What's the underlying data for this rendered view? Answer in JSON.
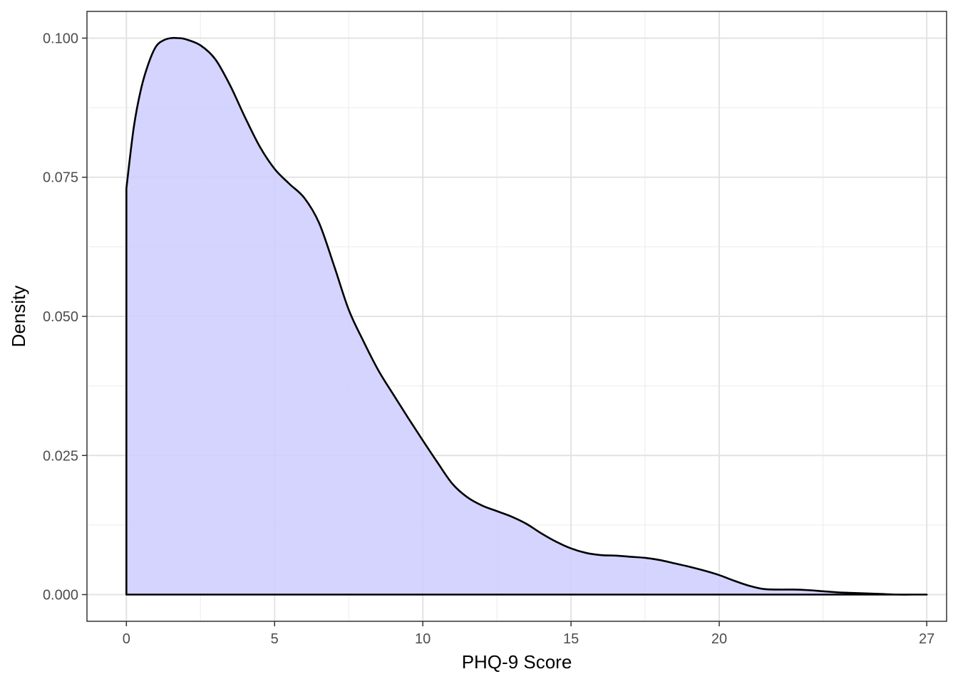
{
  "chart_data": {
    "type": "area",
    "title": "",
    "xlabel": "PHQ-9 Score",
    "ylabel": "Density",
    "xlim": [
      -1.33,
      27.67
    ],
    "ylim": [
      -0.0048,
      0.1048
    ],
    "x_ticks": [
      0,
      5,
      10,
      15,
      20,
      27
    ],
    "x_tick_labels": [
      "0",
      "5",
      "10",
      "15",
      "20",
      "27"
    ],
    "x_minor_ticks": [
      2.5,
      7.5,
      12.5,
      17.5,
      23.5
    ],
    "y_ticks": [
      0,
      0.025,
      0.05,
      0.075,
      0.1
    ],
    "y_tick_labels": [
      "0.000",
      "0.025",
      "0.050",
      "0.075",
      "0.100"
    ],
    "y_minor_ticks": [
      0.0125,
      0.0375,
      0.0625,
      0.0875
    ],
    "grid": true,
    "legend": "none",
    "fill_color": "#ccccff",
    "line_color": "#000000",
    "series": [
      {
        "x": [
          0,
          0.25,
          0.5,
          0.75,
          1.0,
          1.25,
          1.5,
          1.75,
          2.0,
          2.5,
          3.0,
          3.5,
          4.0,
          4.5,
          5.0,
          5.5,
          6.0,
          6.5,
          7.0,
          7.5,
          8.0,
          8.5,
          9.0,
          9.5,
          10.0,
          10.5,
          11.0,
          11.5,
          12.0,
          12.5,
          13.0,
          13.5,
          14.0,
          14.5,
          15.0,
          15.5,
          16.0,
          16.5,
          17.0,
          17.5,
          18.0,
          18.5,
          19.0,
          19.5,
          20.0,
          20.5,
          21.0,
          21.5,
          22.0,
          22.5,
          23.0,
          23.5,
          24.0,
          24.5,
          25.0,
          25.5,
          26.0,
          26.5,
          27.0
        ],
        "y": [
          0.073,
          0.084,
          0.091,
          0.0955,
          0.0985,
          0.0996,
          0.1,
          0.1,
          0.0998,
          0.0987,
          0.0962,
          0.0915,
          0.0858,
          0.0805,
          0.0765,
          0.0738,
          0.0713,
          0.0668,
          0.0592,
          0.0512,
          0.0455,
          0.0403,
          0.036,
          0.0318,
          0.0277,
          0.0237,
          0.0199,
          0.0175,
          0.016,
          0.015,
          0.014,
          0.0127,
          0.011,
          0.0095,
          0.0083,
          0.0075,
          0.0071,
          0.007,
          0.0068,
          0.0066,
          0.0062,
          0.0056,
          0.005,
          0.0043,
          0.0035,
          0.0025,
          0.0016,
          0.001,
          0.0009,
          0.0009,
          0.0008,
          0.0006,
          0.0004,
          0.0003,
          0.0002,
          0.0001,
          0,
          0,
          0
        ]
      }
    ]
  }
}
